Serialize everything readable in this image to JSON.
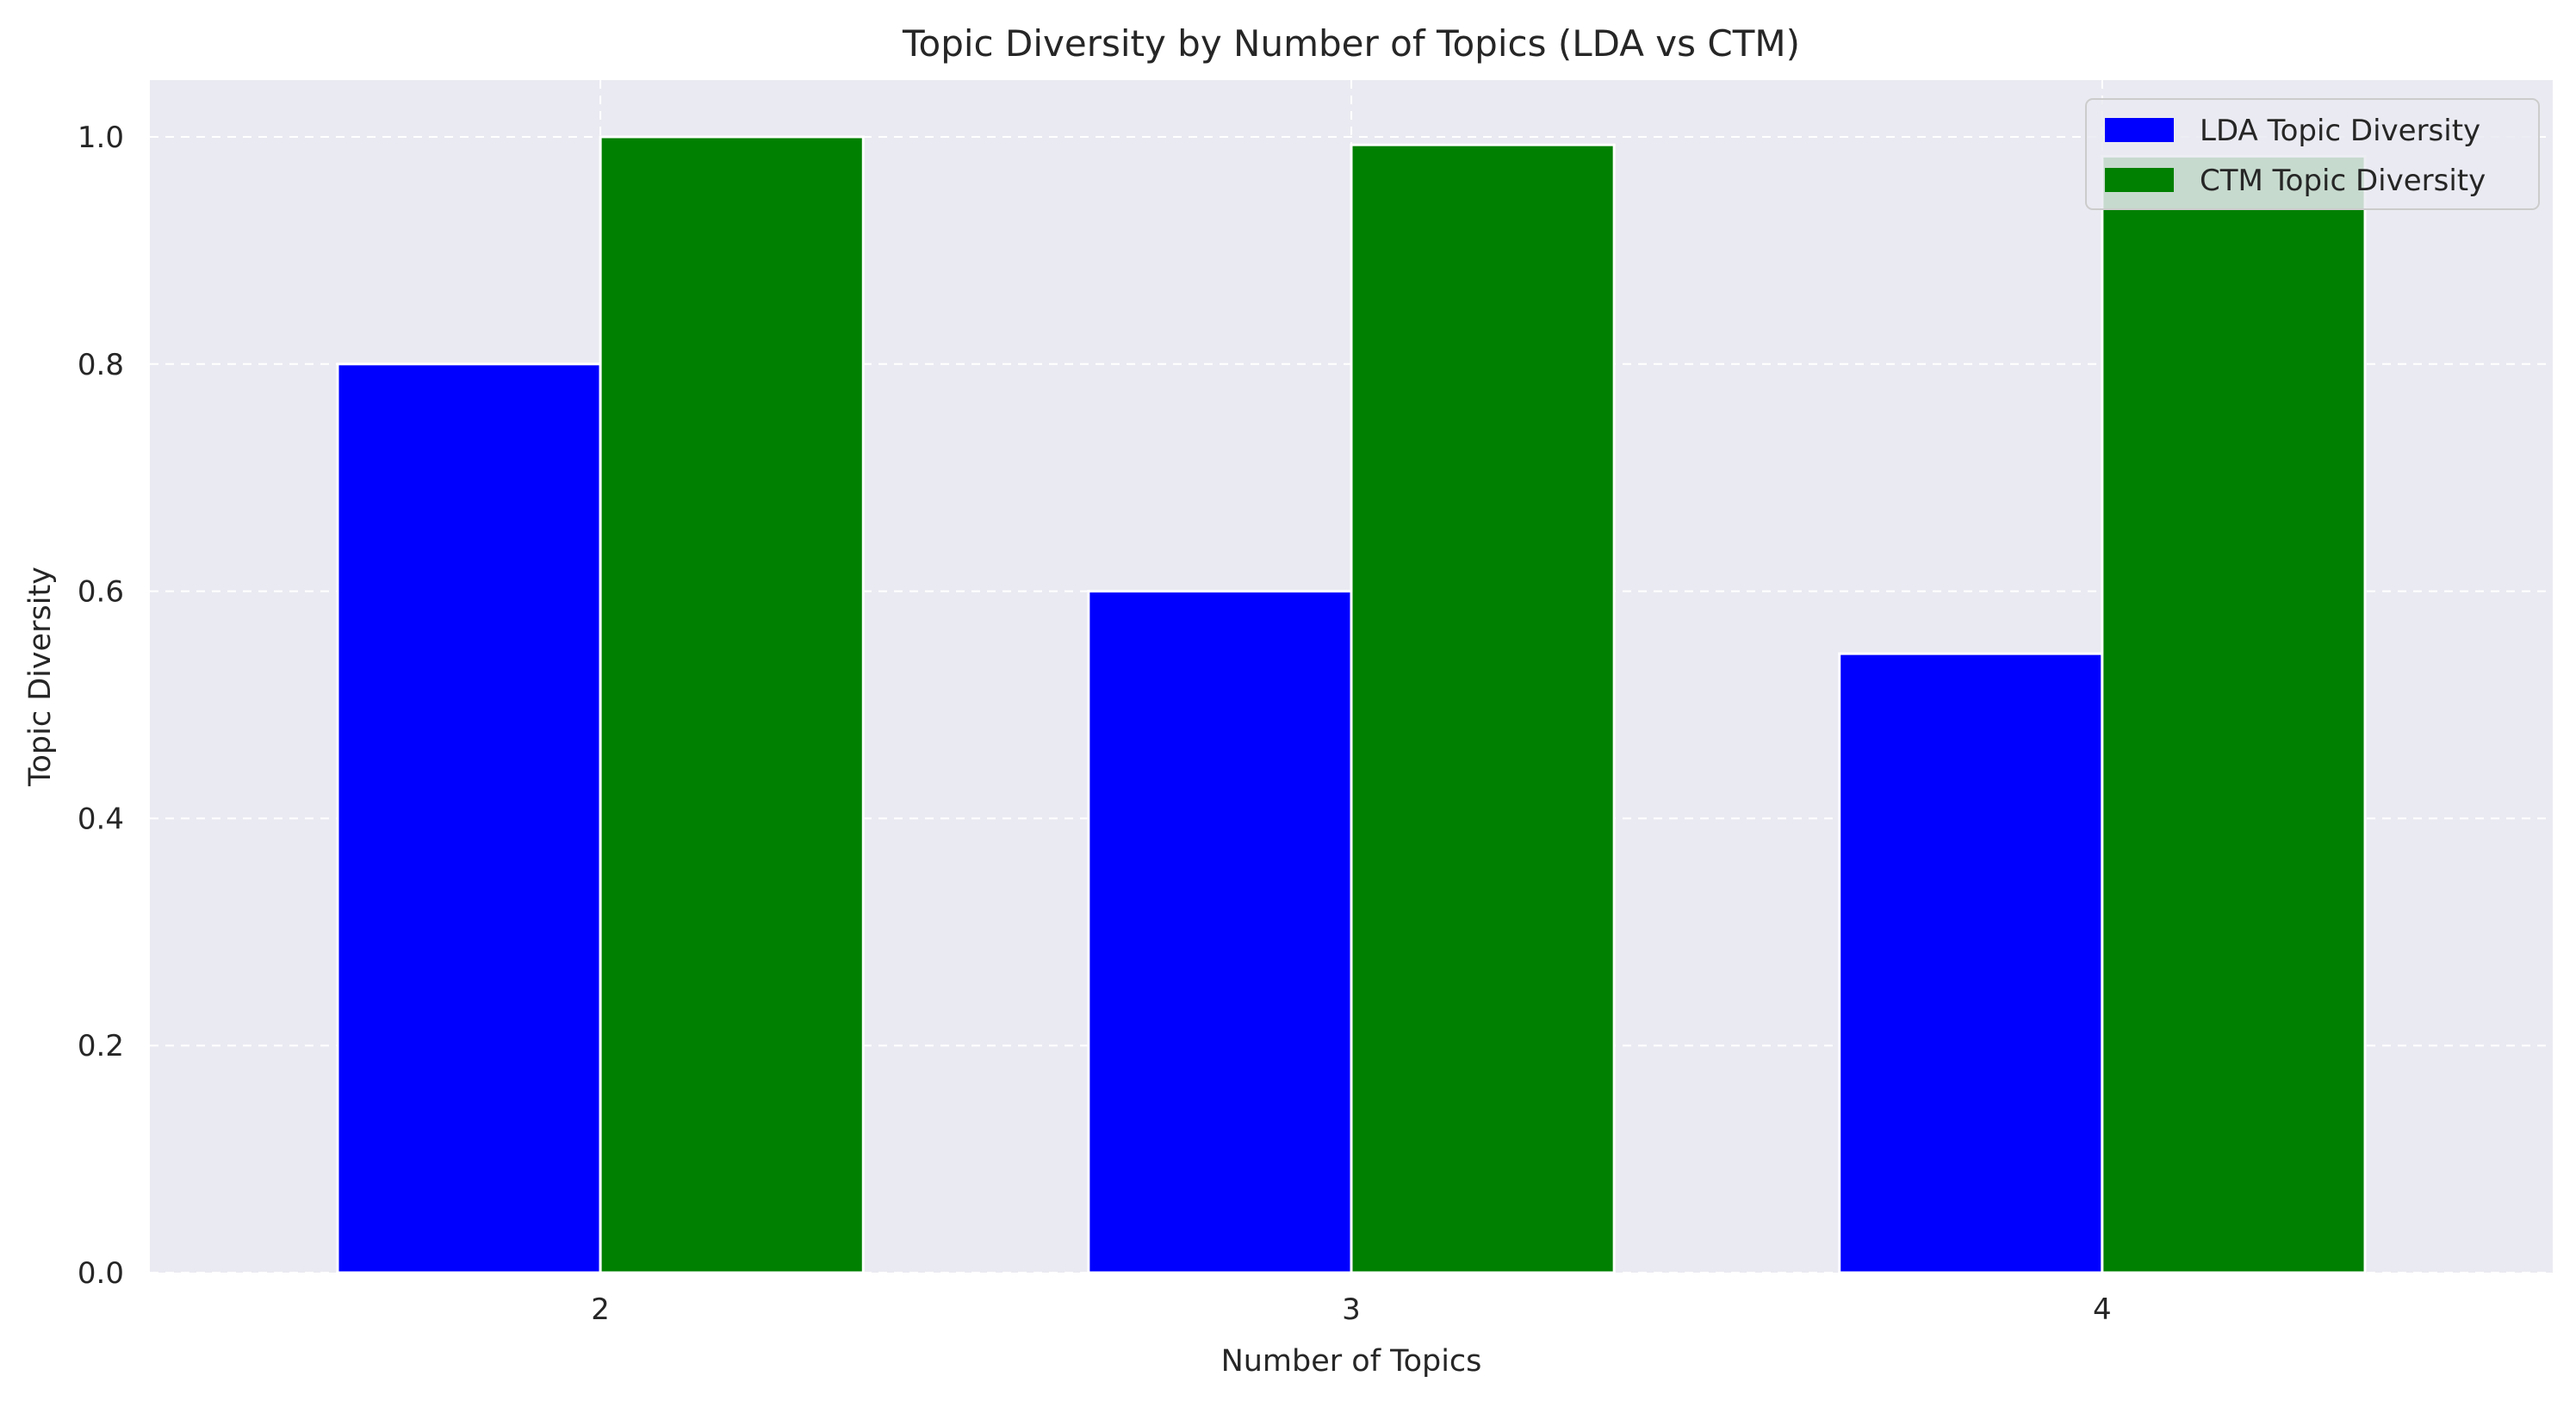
{
  "chart_data": {
    "type": "bar",
    "title": "Topic Diversity by Number of Topics (LDA vs CTM)",
    "xlabel": "Number of Topics",
    "ylabel": "Topic Diversity",
    "categories": [
      "2",
      "3",
      "4"
    ],
    "series": [
      {
        "name": "LDA Topic Diversity",
        "values": [
          0.8,
          0.6,
          0.545
        ],
        "color": "#0000ff"
      },
      {
        "name": "CTM Topic Diversity",
        "values": [
          1.0,
          0.993,
          0.983
        ],
        "color": "#008000"
      }
    ],
    "ylim": [
      0,
      1.05
    ],
    "yticks": [
      "0.0",
      "0.2",
      "0.4",
      "0.6",
      "0.8",
      "1.0"
    ],
    "grid": true,
    "legend_position": "top-right",
    "plot_background": "#eaeaf2"
  }
}
